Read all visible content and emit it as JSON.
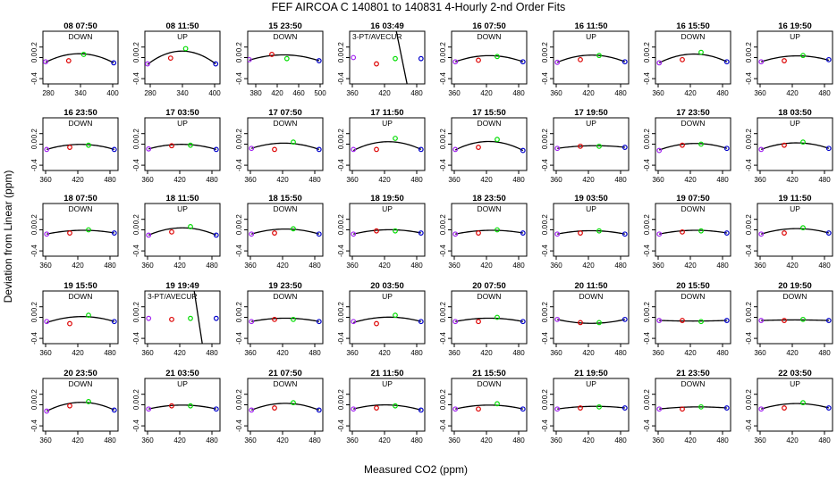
{
  "title": "FEF   AIRCOA C   140801 to 140831   4-Hourly 2-nd Order Fits",
  "xlabel": "Measured CO2 (ppm)",
  "ylabel": "Deviation from Linear (ppm)",
  "colors": {
    "c1": "#a020f0",
    "c2": "#dd0000",
    "c3": "#00dd00",
    "c4": "#0000cc",
    "fit": "#000000"
  },
  "chart_data": {
    "type": "scatter",
    "ylim": [
      -0.5,
      0.5
    ],
    "yticks": [
      -0.4,
      0.0,
      0.2
    ],
    "panels": [
      {
        "title": "08 07:50",
        "label": "DOWN",
        "xticks": [
          280,
          340,
          400
        ],
        "xlim": [
          270,
          410
        ],
        "x": [
          275,
          318,
          346,
          402
        ],
        "y": [
          -0.08,
          -0.06,
          0.06,
          -0.1
        ],
        "fit": [
          -0.09,
          0.07,
          -0.1
        ]
      },
      {
        "title": "08 11:50",
        "label": "UP",
        "xticks": [
          280,
          340,
          400
        ],
        "xlim": [
          270,
          410
        ],
        "x": [
          275,
          318,
          346,
          402
        ],
        "y": [
          -0.12,
          -0.01,
          0.17,
          -0.12
        ],
        "fit": [
          -0.13,
          0.12,
          -0.12
        ]
      },
      {
        "title": "15 23:50",
        "label": "DOWN",
        "xticks": [
          380,
          420,
          460,
          500
        ],
        "xlim": [
          365,
          505
        ],
        "x": [
          368,
          410,
          438,
          498
        ],
        "y": [
          -0.04,
          0.06,
          -0.02,
          -0.06
        ],
        "fit": [
          -0.05,
          0.05,
          -0.06
        ]
      },
      {
        "title": "16 03:49",
        "label": "3-PT/AVECUR",
        "xticks": [
          360,
          420,
          480
        ],
        "xlim": [
          355,
          495
        ],
        "x": [
          362,
          405,
          440,
          488
        ],
        "y": [
          0.0,
          -0.12,
          -0.02,
          -0.02
        ],
        "steep": [
          [
            442,
            0.5
          ],
          [
            462,
            -0.5
          ]
        ]
      },
      {
        "title": "16 07:50",
        "label": "DOWN",
        "xticks": [
          360,
          420,
          480
        ],
        "xlim": [
          355,
          495
        ],
        "x": [
          362,
          405,
          440,
          488
        ],
        "y": [
          -0.08,
          -0.05,
          0.02,
          -0.08
        ],
        "fit": [
          -0.08,
          0.03,
          -0.08
        ]
      },
      {
        "title": "16 11:50",
        "label": "UP",
        "xticks": [
          360,
          420,
          480
        ],
        "xlim": [
          355,
          495
        ],
        "x": [
          362,
          405,
          440,
          488
        ],
        "y": [
          -0.09,
          -0.04,
          0.04,
          -0.08
        ],
        "fit": [
          -0.09,
          0.04,
          -0.08
        ]
      },
      {
        "title": "16 15:50",
        "label": "DOWN",
        "xticks": [
          360,
          420,
          480
        ],
        "xlim": [
          355,
          495
        ],
        "x": [
          362,
          405,
          440,
          488
        ],
        "y": [
          -0.1,
          -0.04,
          0.1,
          -0.08
        ],
        "fit": [
          -0.1,
          0.06,
          -0.08
        ]
      },
      {
        "title": "16 19:50",
        "label": "UP",
        "xticks": [
          360,
          420,
          480
        ],
        "xlim": [
          355,
          495
        ],
        "x": [
          362,
          405,
          440,
          488
        ],
        "y": [
          -0.08,
          -0.06,
          0.04,
          -0.04
        ],
        "fit": [
          -0.08,
          0.03,
          -0.05
        ]
      },
      {
        "title": "16 23:50",
        "label": "DOWN",
        "xticks": [
          360,
          420,
          480
        ],
        "xlim": [
          355,
          495
        ],
        "x": [
          362,
          405,
          440,
          488
        ],
        "y": [
          -0.1,
          -0.06,
          -0.02,
          -0.1
        ],
        "fit": [
          -0.1,
          -0.01,
          -0.1
        ]
      },
      {
        "title": "17 03:50",
        "label": "UP",
        "xticks": [
          360,
          420,
          480
        ],
        "xlim": [
          355,
          495
        ],
        "x": [
          362,
          405,
          440,
          488
        ],
        "y": [
          -0.09,
          -0.03,
          -0.02,
          -0.1
        ],
        "fit": [
          -0.09,
          -0.01,
          -0.1
        ]
      },
      {
        "title": "17 07:50",
        "label": "DOWN",
        "xticks": [
          360,
          420,
          480
        ],
        "xlim": [
          355,
          495
        ],
        "x": [
          362,
          405,
          440,
          488
        ],
        "y": [
          -0.08,
          -0.1,
          0.04,
          -0.1
        ],
        "fit": [
          -0.08,
          0.01,
          -0.1
        ]
      },
      {
        "title": "17 11:50",
        "label": "UP",
        "xticks": [
          360,
          420,
          480
        ],
        "xlim": [
          355,
          495
        ],
        "x": [
          362,
          405,
          440,
          488
        ],
        "y": [
          -0.1,
          -0.1,
          0.11,
          -0.1
        ],
        "fit": [
          -0.12,
          0.04,
          -0.1
        ]
      },
      {
        "title": "17 15:50",
        "label": "DOWN",
        "xticks": [
          360,
          420,
          480
        ],
        "xlim": [
          355,
          495
        ],
        "x": [
          362,
          405,
          440,
          488
        ],
        "y": [
          -0.1,
          -0.06,
          0.09,
          -0.12
        ],
        "fit": [
          -0.11,
          0.04,
          -0.12
        ]
      },
      {
        "title": "17 19:50",
        "label": "UP",
        "xticks": [
          360,
          420,
          480
        ],
        "xlim": [
          355,
          495
        ],
        "x": [
          362,
          405,
          440,
          488
        ],
        "y": [
          -0.08,
          -0.04,
          -0.04,
          -0.06
        ],
        "fit": [
          -0.08,
          -0.03,
          -0.06
        ]
      },
      {
        "title": "17 23:50",
        "label": "DOWN",
        "xticks": [
          360,
          420,
          480
        ],
        "xlim": [
          355,
          495
        ],
        "x": [
          362,
          405,
          440,
          488
        ],
        "y": [
          -0.12,
          -0.02,
          0.0,
          -0.08
        ],
        "fit": [
          -0.11,
          0.01,
          -0.08
        ]
      },
      {
        "title": "18 03:50",
        "label": "UP",
        "xticks": [
          360,
          420,
          480
        ],
        "xlim": [
          355,
          495
        ],
        "x": [
          362,
          405,
          440,
          488
        ],
        "y": [
          -0.1,
          -0.02,
          0.04,
          -0.08
        ],
        "fit": [
          -0.1,
          0.02,
          -0.08
        ]
      },
      {
        "title": "18 07:50",
        "label": "DOWN",
        "xticks": [
          360,
          420,
          480
        ],
        "xlim": [
          355,
          495
        ],
        "x": [
          362,
          405,
          440,
          488
        ],
        "y": [
          -0.08,
          -0.06,
          0.0,
          -0.06
        ],
        "fit": [
          -0.08,
          -0.01,
          -0.06
        ]
      },
      {
        "title": "18 11:50",
        "label": "UP",
        "xticks": [
          360,
          420,
          480
        ],
        "xlim": [
          355,
          495
        ],
        "x": [
          362,
          405,
          440,
          488
        ],
        "y": [
          -0.1,
          -0.04,
          0.06,
          -0.1
        ],
        "fit": [
          -0.1,
          0.03,
          -0.1
        ]
      },
      {
        "title": "18 15:50",
        "label": "DOWN",
        "xticks": [
          360,
          420,
          480
        ],
        "xlim": [
          355,
          495
        ],
        "x": [
          362,
          405,
          440,
          488
        ],
        "y": [
          -0.08,
          -0.06,
          0.02,
          -0.08
        ],
        "fit": [
          -0.08,
          0.01,
          -0.08
        ]
      },
      {
        "title": "18 19:50",
        "label": "UP",
        "xticks": [
          360,
          420,
          480
        ],
        "xlim": [
          355,
          495
        ],
        "x": [
          362,
          405,
          440,
          488
        ],
        "y": [
          -0.08,
          -0.02,
          -0.02,
          -0.06
        ],
        "fit": [
          -0.08,
          0.0,
          -0.06
        ]
      },
      {
        "title": "18 23:50",
        "label": "DOWN",
        "xticks": [
          360,
          420,
          480
        ],
        "xlim": [
          355,
          495
        ],
        "x": [
          362,
          405,
          440,
          488
        ],
        "y": [
          -0.08,
          -0.06,
          0.0,
          -0.06
        ],
        "fit": [
          -0.08,
          -0.01,
          -0.06
        ]
      },
      {
        "title": "19 03:50",
        "label": "UP",
        "xticks": [
          360,
          420,
          480
        ],
        "xlim": [
          355,
          495
        ],
        "x": [
          362,
          405,
          440,
          488
        ],
        "y": [
          -0.08,
          -0.06,
          -0.02,
          -0.08
        ],
        "fit": [
          -0.08,
          -0.02,
          -0.08
        ]
      },
      {
        "title": "19 07:50",
        "label": "DOWN",
        "xticks": [
          360,
          420,
          480
        ],
        "xlim": [
          355,
          495
        ],
        "x": [
          362,
          405,
          440,
          488
        ],
        "y": [
          -0.08,
          -0.04,
          -0.02,
          -0.06
        ],
        "fit": [
          -0.08,
          -0.01,
          -0.06
        ]
      },
      {
        "title": "19 11:50",
        "label": "UP",
        "xticks": [
          360,
          420,
          480
        ],
        "xlim": [
          355,
          495
        ],
        "x": [
          362,
          405,
          440,
          488
        ],
        "y": [
          -0.08,
          -0.06,
          0.04,
          -0.06
        ],
        "fit": [
          -0.08,
          0.02,
          -0.06
        ]
      },
      {
        "title": "19 15:50",
        "label": "DOWN",
        "xticks": [
          360,
          420,
          480
        ],
        "xlim": [
          355,
          495
        ],
        "x": [
          362,
          405,
          440,
          488
        ],
        "y": [
          -0.08,
          -0.12,
          0.04,
          -0.08
        ],
        "fit": [
          -0.1,
          0.01,
          -0.08
        ]
      },
      {
        "title": "19 19:49",
        "label": "3-PT/AVECUR",
        "xticks": [
          360,
          420,
          480
        ],
        "xlim": [
          355,
          495
        ],
        "x": [
          362,
          405,
          440,
          488
        ],
        "y": [
          -0.02,
          -0.04,
          -0.02,
          -0.02
        ],
        "steep": [
          [
            447,
            0.5
          ],
          [
            462,
            -0.5
          ]
        ]
      },
      {
        "title": "19 23:50",
        "label": "DOWN",
        "xticks": [
          360,
          420,
          480
        ],
        "xlim": [
          355,
          495
        ],
        "x": [
          362,
          405,
          440,
          488
        ],
        "y": [
          -0.08,
          -0.04,
          -0.04,
          -0.08
        ],
        "fit": [
          -0.08,
          -0.02,
          -0.08
        ]
      },
      {
        "title": "20 03:50",
        "label": "UP",
        "xticks": [
          360,
          420,
          480
        ],
        "xlim": [
          355,
          495
        ],
        "x": [
          362,
          405,
          440,
          488
        ],
        "y": [
          -0.08,
          -0.12,
          0.04,
          -0.08
        ],
        "fit": [
          -0.1,
          0.0,
          -0.08
        ]
      },
      {
        "title": "20 07:50",
        "label": "DOWN",
        "xticks": [
          360,
          420,
          480
        ],
        "xlim": [
          355,
          495
        ],
        "x": [
          362,
          405,
          440,
          488
        ],
        "y": [
          -0.08,
          -0.08,
          0.0,
          -0.08
        ],
        "fit": [
          -0.08,
          -0.02,
          -0.08
        ]
      },
      {
        "title": "20 11:50",
        "label": "DOWN",
        "xticks": [
          360,
          420,
          480
        ],
        "xlim": [
          355,
          495
        ],
        "x": [
          362,
          405,
          440,
          488
        ],
        "y": [
          -0.04,
          -0.1,
          -0.1,
          -0.04
        ],
        "fit": [
          -0.04,
          -0.11,
          -0.04
        ]
      },
      {
        "title": "20 15:50",
        "label": "DOWN",
        "xticks": [
          360,
          420,
          480
        ],
        "xlim": [
          355,
          495
        ],
        "x": [
          362,
          405,
          440,
          488
        ],
        "y": [
          -0.06,
          -0.06,
          -0.08,
          -0.06
        ],
        "fit": [
          -0.06,
          -0.07,
          -0.06
        ]
      },
      {
        "title": "20 19:50",
        "label": "DOWN",
        "xticks": [
          360,
          420,
          480
        ],
        "xlim": [
          355,
          495
        ],
        "x": [
          362,
          405,
          440,
          488
        ],
        "y": [
          -0.06,
          -0.06,
          -0.04,
          -0.06
        ],
        "fit": [
          -0.06,
          -0.05,
          -0.06
        ]
      },
      {
        "title": "20 23:50",
        "label": "DOWN",
        "xticks": [
          360,
          420,
          480
        ],
        "xlim": [
          355,
          495
        ],
        "x": [
          362,
          405,
          440,
          488
        ],
        "y": [
          -0.12,
          -0.02,
          0.06,
          -0.1
        ],
        "fit": [
          -0.12,
          0.04,
          -0.1
        ]
      },
      {
        "title": "21 03:50",
        "label": "UP",
        "xticks": [
          360,
          420,
          480
        ],
        "xlim": [
          355,
          495
        ],
        "x": [
          362,
          405,
          440,
          488
        ],
        "y": [
          -0.08,
          -0.02,
          -0.02,
          -0.08
        ],
        "fit": [
          -0.08,
          -0.01,
          -0.08
        ]
      },
      {
        "title": "21 07:50",
        "label": "DOWN",
        "xticks": [
          360,
          420,
          480
        ],
        "xlim": [
          355,
          495
        ],
        "x": [
          362,
          405,
          440,
          488
        ],
        "y": [
          -0.1,
          -0.06,
          0.04,
          -0.1
        ],
        "fit": [
          -0.1,
          0.02,
          -0.1
        ]
      },
      {
        "title": "21 11:50",
        "label": "UP",
        "xticks": [
          360,
          420,
          480
        ],
        "xlim": [
          355,
          495
        ],
        "x": [
          362,
          405,
          440,
          488
        ],
        "y": [
          -0.08,
          -0.06,
          -0.02,
          -0.1
        ],
        "fit": [
          -0.08,
          -0.01,
          -0.1
        ]
      },
      {
        "title": "21 15:50",
        "label": "DOWN",
        "xticks": [
          360,
          420,
          480
        ],
        "xlim": [
          355,
          495
        ],
        "x": [
          362,
          405,
          440,
          488
        ],
        "y": [
          -0.08,
          -0.08,
          0.02,
          -0.08
        ],
        "fit": [
          -0.08,
          -0.01,
          -0.08
        ]
      },
      {
        "title": "21 19:50",
        "label": "UP",
        "xticks": [
          360,
          420,
          480
        ],
        "xlim": [
          355,
          495
        ],
        "x": [
          362,
          405,
          440,
          488
        ],
        "y": [
          -0.08,
          -0.06,
          -0.04,
          -0.06
        ],
        "fit": [
          -0.08,
          -0.03,
          -0.06
        ]
      },
      {
        "title": "21 23:50",
        "label": "DOWN",
        "xticks": [
          360,
          420,
          480
        ],
        "xlim": [
          355,
          495
        ],
        "x": [
          362,
          405,
          440,
          488
        ],
        "y": [
          -0.08,
          -0.08,
          -0.04,
          -0.06
        ],
        "fit": [
          -0.08,
          -0.04,
          -0.06
        ]
      },
      {
        "title": "22 03:50",
        "label": "UP",
        "xticks": [
          360,
          420,
          480
        ],
        "xlim": [
          355,
          495
        ],
        "x": [
          362,
          405,
          440,
          488
        ],
        "y": [
          -0.08,
          -0.06,
          0.04,
          -0.06
        ],
        "fit": [
          -0.08,
          0.02,
          -0.06
        ]
      }
    ]
  }
}
